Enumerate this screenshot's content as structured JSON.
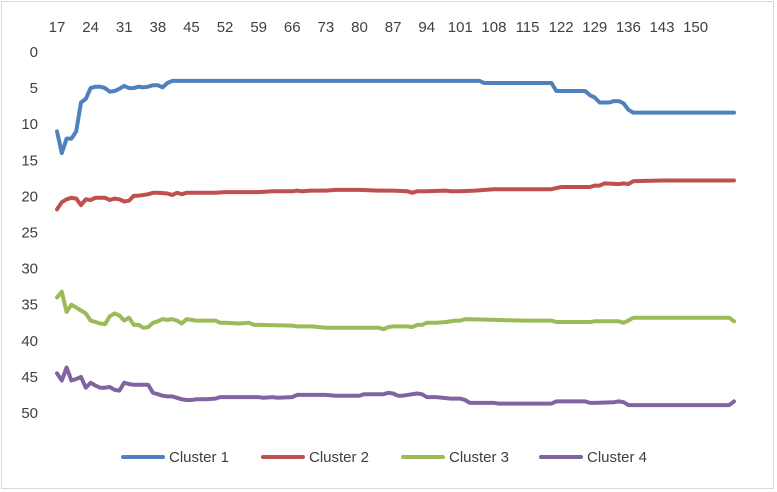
{
  "chart_data": {
    "type": "line",
    "title": "",
    "xlabel": "",
    "ylabel": "",
    "x_axis_position": "top",
    "y_axis_inverted": true,
    "xlim": [
      17,
      158
    ],
    "ylim": [
      0,
      50
    ],
    "x_ticks": [
      "17",
      "24",
      "31",
      "38",
      "45",
      "52",
      "59",
      "66",
      "73",
      "80",
      "87",
      "94",
      "101",
      "108",
      "115",
      "122",
      "129",
      "136",
      "143",
      "150"
    ],
    "y_ticks": [
      "0",
      "5",
      "10",
      "15",
      "20",
      "25",
      "30",
      "35",
      "40",
      "45",
      "50"
    ],
    "grid": false,
    "legend_position": "bottom",
    "series": [
      {
        "name": "Cluster 1",
        "color": "#4f81bd",
        "points": [
          [
            17,
            11
          ],
          [
            18,
            14
          ],
          [
            19,
            12
          ],
          [
            20,
            12
          ],
          [
            21,
            11
          ],
          [
            22,
            7
          ],
          [
            23,
            6.5
          ],
          [
            24,
            5
          ],
          [
            25,
            4.8
          ],
          [
            26,
            4.8
          ],
          [
            27,
            5
          ],
          [
            28,
            5.5
          ],
          [
            29,
            5.4
          ],
          [
            30,
            5.1
          ],
          [
            31,
            4.7
          ],
          [
            32,
            5
          ],
          [
            33,
            5
          ],
          [
            34,
            4.8
          ],
          [
            35,
            4.9
          ],
          [
            36,
            4.8
          ],
          [
            37,
            4.6
          ],
          [
            38,
            4.6
          ],
          [
            39,
            4.9
          ],
          [
            40,
            4.3
          ],
          [
            41,
            4
          ],
          [
            45,
            4
          ],
          [
            52,
            4
          ],
          [
            59,
            4
          ],
          [
            66,
            4
          ],
          [
            73,
            4
          ],
          [
            80,
            4
          ],
          [
            87,
            4
          ],
          [
            94,
            4
          ],
          [
            101,
            4
          ],
          [
            105,
            4
          ],
          [
            106,
            4.3
          ],
          [
            108,
            4.3
          ],
          [
            115,
            4.3
          ],
          [
            120,
            4.3
          ],
          [
            121,
            5.4
          ],
          [
            125,
            5.4
          ],
          [
            127,
            5.4
          ],
          [
            128,
            6
          ],
          [
            129,
            6.3
          ],
          [
            130,
            7
          ],
          [
            132,
            7
          ],
          [
            133,
            6.8
          ],
          [
            134,
            6.8
          ],
          [
            135,
            7.1
          ],
          [
            136,
            8
          ],
          [
            137,
            8.4
          ],
          [
            143,
            8.4
          ],
          [
            150,
            8.4
          ],
          [
            158,
            8.4
          ]
        ]
      },
      {
        "name": "Cluster 2",
        "color": "#c0504d",
        "points": [
          [
            17,
            21.8
          ],
          [
            18,
            20.8
          ],
          [
            19,
            20.4
          ],
          [
            20,
            20.2
          ],
          [
            21,
            20.3
          ],
          [
            22,
            21.2
          ],
          [
            23,
            20.4
          ],
          [
            24,
            20.5
          ],
          [
            25,
            20.2
          ],
          [
            26,
            20.2
          ],
          [
            27,
            20.2
          ],
          [
            28,
            20.5
          ],
          [
            29,
            20.3
          ],
          [
            30,
            20.4
          ],
          [
            31,
            20.7
          ],
          [
            32,
            20.6
          ],
          [
            33,
            19.9
          ],
          [
            34,
            19.9
          ],
          [
            35,
            19.8
          ],
          [
            36,
            19.7
          ],
          [
            37,
            19.5
          ],
          [
            38,
            19.5
          ],
          [
            40,
            19.6
          ],
          [
            41,
            19.8
          ],
          [
            42,
            19.5
          ],
          [
            43,
            19.7
          ],
          [
            44,
            19.5
          ],
          [
            45,
            19.5
          ],
          [
            48,
            19.5
          ],
          [
            50,
            19.5
          ],
          [
            52,
            19.4
          ],
          [
            59,
            19.4
          ],
          [
            62,
            19.3
          ],
          [
            66,
            19.3
          ],
          [
            67,
            19.2
          ],
          [
            68,
            19.3
          ],
          [
            70,
            19.2
          ],
          [
            73,
            19.2
          ],
          [
            75,
            19.1
          ],
          [
            80,
            19.1
          ],
          [
            84,
            19.2
          ],
          [
            87,
            19.2
          ],
          [
            90,
            19.3
          ],
          [
            91,
            19.5
          ],
          [
            92,
            19.3
          ],
          [
            94,
            19.3
          ],
          [
            98,
            19.2
          ],
          [
            99,
            19.3
          ],
          [
            101,
            19.3
          ],
          [
            104,
            19.2
          ],
          [
            108,
            19
          ],
          [
            115,
            19
          ],
          [
            120,
            19
          ],
          [
            122,
            18.7
          ],
          [
            128,
            18.7
          ],
          [
            129,
            18.5
          ],
          [
            130,
            18.5
          ],
          [
            131,
            18.2
          ],
          [
            134,
            18.3
          ],
          [
            135,
            18.2
          ],
          [
            136,
            18.3
          ],
          [
            137,
            17.9
          ],
          [
            143,
            17.8
          ],
          [
            150,
            17.8
          ],
          [
            158,
            17.8
          ]
        ]
      },
      {
        "name": "Cluster 3",
        "color": "#9bbb59",
        "points": [
          [
            17,
            34
          ],
          [
            18,
            33.2
          ],
          [
            19,
            36
          ],
          [
            20,
            35
          ],
          [
            21,
            35.4
          ],
          [
            22,
            35.8
          ],
          [
            23,
            36.2
          ],
          [
            24,
            37.2
          ],
          [
            25,
            37.4
          ],
          [
            26,
            37.6
          ],
          [
            27,
            37.7
          ],
          [
            28,
            36.6
          ],
          [
            29,
            36.2
          ],
          [
            30,
            36.5
          ],
          [
            31,
            37.2
          ],
          [
            32,
            36.8
          ],
          [
            33,
            37.8
          ],
          [
            34,
            37.8
          ],
          [
            35,
            38.2
          ],
          [
            36,
            38.1
          ],
          [
            37,
            37.5
          ],
          [
            38,
            37.3
          ],
          [
            39,
            37
          ],
          [
            40,
            37.1
          ],
          [
            41,
            37
          ],
          [
            42,
            37.2
          ],
          [
            43,
            37.6
          ],
          [
            44,
            37
          ],
          [
            45,
            37.1
          ],
          [
            46,
            37.2
          ],
          [
            47,
            37.2
          ],
          [
            50,
            37.2
          ],
          [
            51,
            37.5
          ],
          [
            52,
            37.5
          ],
          [
            55,
            37.6
          ],
          [
            57,
            37.5
          ],
          [
            58,
            37.8
          ],
          [
            59,
            37.8
          ],
          [
            66,
            37.9
          ],
          [
            67,
            38
          ],
          [
            70,
            38
          ],
          [
            73,
            38.2
          ],
          [
            80,
            38.2
          ],
          [
            84,
            38.2
          ],
          [
            85,
            38.4
          ],
          [
            86,
            38.1
          ],
          [
            87,
            38
          ],
          [
            90,
            38
          ],
          [
            91,
            38.1
          ],
          [
            92,
            37.8
          ],
          [
            93,
            37.8
          ],
          [
            94,
            37.5
          ],
          [
            96,
            37.5
          ],
          [
            98,
            37.4
          ],
          [
            100,
            37.2
          ],
          [
            101,
            37.2
          ],
          [
            102,
            37
          ],
          [
            108,
            37.1
          ],
          [
            115,
            37.2
          ],
          [
            120,
            37.2
          ],
          [
            121,
            37.4
          ],
          [
            128,
            37.4
          ],
          [
            129,
            37.3
          ],
          [
            134,
            37.3
          ],
          [
            135,
            37.5
          ],
          [
            136,
            37.2
          ],
          [
            137,
            36.8
          ],
          [
            143,
            36.8
          ],
          [
            150,
            36.8
          ],
          [
            157,
            36.8
          ],
          [
            158,
            37.3
          ]
        ]
      },
      {
        "name": "Cluster 4",
        "color": "#8064a2",
        "points": [
          [
            17,
            44.5
          ],
          [
            18,
            45.5
          ],
          [
            19,
            43.7
          ],
          [
            20,
            45.5
          ],
          [
            21,
            45.3
          ],
          [
            22,
            45
          ],
          [
            23,
            46.5
          ],
          [
            24,
            45.8
          ],
          [
            25,
            46.2
          ],
          [
            26,
            46.5
          ],
          [
            27,
            46.5
          ],
          [
            28,
            46.4
          ],
          [
            29,
            46.8
          ],
          [
            30,
            46.9
          ],
          [
            31,
            45.8
          ],
          [
            32,
            46
          ],
          [
            33,
            46.1
          ],
          [
            34,
            46.1
          ],
          [
            35,
            46.1
          ],
          [
            36,
            46.1
          ],
          [
            37,
            47.2
          ],
          [
            38,
            47.4
          ],
          [
            39,
            47.6
          ],
          [
            40,
            47.7
          ],
          [
            41,
            47.7
          ],
          [
            42,
            47.9
          ],
          [
            43,
            48.1
          ],
          [
            44,
            48.2
          ],
          [
            45,
            48.2
          ],
          [
            46,
            48.1
          ],
          [
            48,
            48.1
          ],
          [
            50,
            48
          ],
          [
            51,
            47.8
          ],
          [
            52,
            47.8
          ],
          [
            59,
            47.8
          ],
          [
            60,
            47.9
          ],
          [
            62,
            47.8
          ],
          [
            63,
            47.9
          ],
          [
            66,
            47.8
          ],
          [
            67,
            47.5
          ],
          [
            70,
            47.5
          ],
          [
            73,
            47.5
          ],
          [
            75,
            47.6
          ],
          [
            80,
            47.6
          ],
          [
            81,
            47.4
          ],
          [
            85,
            47.4
          ],
          [
            86,
            47.2
          ],
          [
            87,
            47.3
          ],
          [
            88,
            47.6
          ],
          [
            89,
            47.6
          ],
          [
            91,
            47.4
          ],
          [
            92,
            47.3
          ],
          [
            93,
            47.4
          ],
          [
            94,
            47.8
          ],
          [
            96,
            47.8
          ],
          [
            99,
            48
          ],
          [
            101,
            48
          ],
          [
            102,
            48.2
          ],
          [
            103,
            48.6
          ],
          [
            108,
            48.6
          ],
          [
            109,
            48.7
          ],
          [
            115,
            48.7
          ],
          [
            120,
            48.7
          ],
          [
            121,
            48.4
          ],
          [
            127,
            48.4
          ],
          [
            128,
            48.6
          ],
          [
            129,
            48.6
          ],
          [
            133,
            48.5
          ],
          [
            134,
            48.4
          ],
          [
            135,
            48.5
          ],
          [
            136,
            48.9
          ],
          [
            143,
            48.9
          ],
          [
            150,
            48.9
          ],
          [
            157,
            48.9
          ],
          [
            158,
            48.4
          ]
        ]
      }
    ]
  }
}
